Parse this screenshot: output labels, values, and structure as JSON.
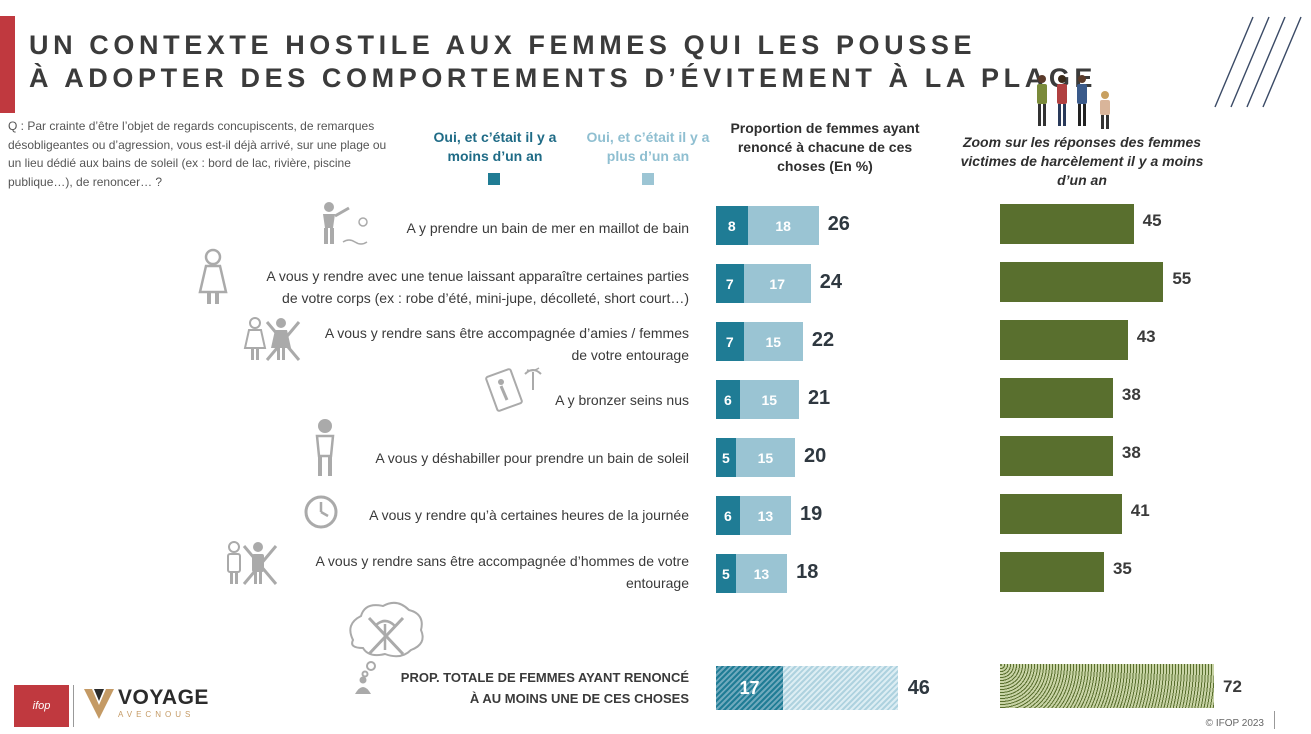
{
  "title_lines": [
    "UN CONTEXTE HOSTILE AUX FEMMES QUI LES POUSSE",
    "À ADOPTER DES COMPORTEMENTS D’ÉVITEMENT À LA PLAGE"
  ],
  "question": "Q : Par crainte d’être l’objet de regards concupiscents, de remarques désobligeantes ou d’agression, vous est-il déjà arrivé, sur une plage ou un lieu dédié aux bains de soleil (ex : bord de lac, rivière, piscine publique…), de renoncer… ?",
  "columns": {
    "recent": "Oui, et c’était il y a moins d’un an",
    "older": "Oui, et c’était il y a plus d’un an",
    "total": "Proportion de femmes ayant renoncé à chacune de ces choses (En %)",
    "zoom": "Zoom sur les réponses des femmes victimes de harcèlement il y a moins d’un an"
  },
  "colors": {
    "recent": "#1f7c95",
    "older": "#9ac4d3",
    "zoom": "#596f2e",
    "accent": "#c0393f"
  },
  "chart_data": {
    "type": "bar",
    "orientation": "horizontal",
    "categories": [
      "A y prendre un bain de mer en maillot de bain",
      "A vous y rendre avec une tenue laissant apparaître certaines parties de votre corps (ex : robe d’été, mini-jupe, décolleté, short court…)",
      "A vous y rendre sans être accompagnée d’amies / femmes de votre entourage",
      "A y bronzer seins nus",
      "A vous y déshabiller pour prendre un bain de soleil",
      "A vous y rendre qu’à certaines heures de la journée",
      "A vous y rendre sans être accompagnée d’hommes de votre entourage"
    ],
    "series": [
      {
        "name": "Oui, et c’était il y a moins d’un an",
        "values": [
          8,
          7,
          7,
          6,
          5,
          6,
          5
        ]
      },
      {
        "name": "Oui, et c’était il y a plus d’un an",
        "values": [
          18,
          17,
          15,
          15,
          15,
          13,
          13
        ]
      }
    ],
    "totals": [
      26,
      24,
      22,
      21,
      20,
      19,
      18
    ],
    "zoom_values": [
      45,
      55,
      43,
      38,
      38,
      41,
      35
    ],
    "overall": {
      "label": "PROP. TOTALE DE FEMMES AYANT RENONCÉ À AU MOINS UNE DE CES CHOSES",
      "recent": 17,
      "older": 29,
      "total": 46,
      "zoom": 72
    },
    "stacked": true
  },
  "labels_display": [
    [
      "A y prendre un bain de mer en maillot de bain"
    ],
    [
      "A vous y rendre avec une tenue laissant apparaître certaines parties",
      "de votre corps (ex : robe d’été, mini-jupe, décolleté, short court…)"
    ],
    [
      "A vous y rendre sans être accompagnée d’amies / femmes",
      "de votre entourage"
    ],
    [
      "A y bronzer seins nus"
    ],
    [
      "A vous y déshabiller pour prendre un bain de soleil"
    ],
    [
      "A vous y rendre qu’à certaines heures de la journée"
    ],
    [
      "A vous y rendre sans être accompagnée d’hommes de votre",
      "entourage"
    ]
  ],
  "total_label_lines": [
    "PROP. TOTALE DE FEMMES AYANT RENONCÉ",
    "À AU MOINS UNE DE CES CHOSES"
  ],
  "icons": [
    "swimmer-icon",
    "dress-icon",
    "group-crossed-icon",
    "sunbathing-icon",
    "woman-swimsuit-icon",
    "clock-icon",
    "men-crossed-icon",
    "thought-beach-crossed-icon"
  ],
  "footer": {
    "logo_ifop": "ifop",
    "logo_voyage": "VOYAGE",
    "logo_voyage_sub": "AVECNOUS",
    "copyright": "© IFOP 2023"
  }
}
